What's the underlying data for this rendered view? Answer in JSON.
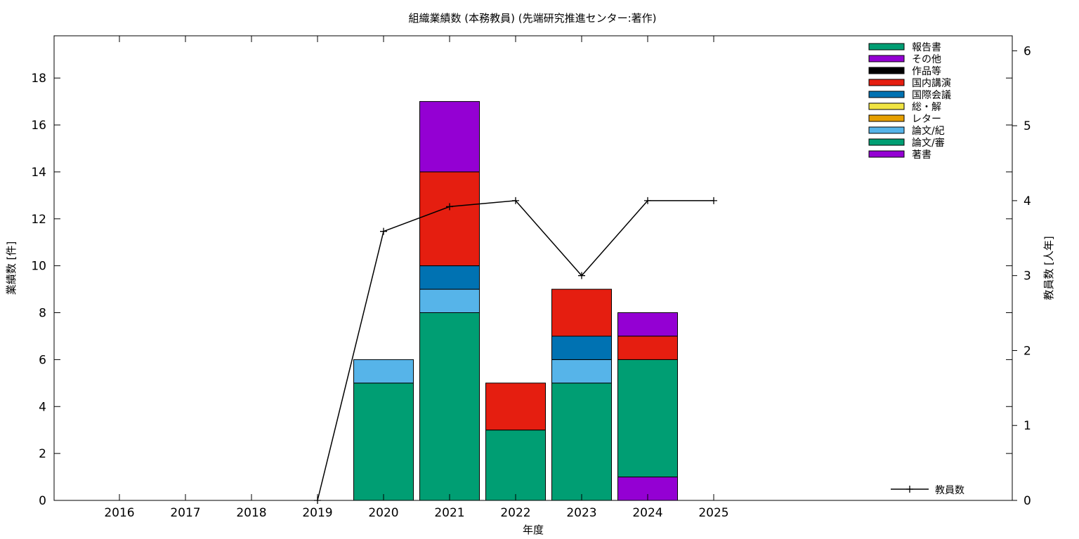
{
  "chart_data": {
    "type": "bar",
    "title": "組織業績数 (本務教員) (先端研究推進センター:著作)",
    "xlabel": "年度",
    "ylabel": "業績数 [件]",
    "y2label": "教員数 [人年]",
    "categories": [
      "2016",
      "2017",
      "2018",
      "2019",
      "2020",
      "2021",
      "2022",
      "2023",
      "2024",
      "2025"
    ],
    "ylim": [
      0,
      19.8
    ],
    "y2lim": [
      0,
      6.2
    ],
    "yticks": [
      "0",
      "2",
      "4",
      "6",
      "8",
      "10",
      "12",
      "14",
      "16",
      "18"
    ],
    "y2ticks": [
      "0",
      "1",
      "2",
      "3",
      "4",
      "5",
      "6"
    ],
    "grid": false,
    "stacked": true,
    "legend_position": "top-right",
    "series": [
      {
        "name": "著書",
        "color": "#9400d3",
        "values": [
          0,
          0,
          0,
          0,
          0,
          0,
          0,
          0,
          1,
          0
        ]
      },
      {
        "name": "論文/審",
        "color": "#009e73",
        "values": [
          0,
          0,
          0,
          0,
          5,
          8,
          3,
          5,
          5,
          0
        ]
      },
      {
        "name": "論文/紀",
        "color": "#56b4e9",
        "values": [
          0,
          0,
          0,
          0,
          1,
          1,
          0,
          1,
          0,
          0
        ]
      },
      {
        "name": "レター",
        "color": "#e69f00",
        "values": [
          0,
          0,
          0,
          0,
          0,
          0,
          0,
          0,
          0,
          0
        ]
      },
      {
        "name": "総・解",
        "color": "#f0e442",
        "values": [
          0,
          0,
          0,
          0,
          0,
          0,
          0,
          0,
          0,
          0
        ]
      },
      {
        "name": "国際会議",
        "color": "#0072b2",
        "values": [
          0,
          0,
          0,
          0,
          0,
          1,
          0,
          1,
          0,
          0
        ]
      },
      {
        "name": "国内講演",
        "color": "#e51e10",
        "values": [
          0,
          0,
          0,
          0,
          0,
          4,
          2,
          2,
          1,
          0
        ]
      },
      {
        "name": "作品等",
        "color": "#000000",
        "values": [
          0,
          0,
          0,
          0,
          0,
          0,
          0,
          0,
          0,
          0
        ]
      },
      {
        "name": "その他",
        "color": "#9400d3",
        "values": [
          0,
          0,
          0,
          0,
          0,
          3,
          0,
          0,
          1,
          0
        ]
      },
      {
        "name": "報告書",
        "color": "#009e73",
        "values": [
          0,
          0,
          0,
          0,
          0,
          0,
          0,
          0,
          0,
          0
        ]
      }
    ],
    "line_series": {
      "name": "教員数",
      "axis": "y2",
      "color": "#000000",
      "x": [
        "2019",
        "2020",
        "2021",
        "2022",
        "2023",
        "2024",
        "2025"
      ],
      "values": [
        0,
        3.59,
        3.92,
        4.0,
        3.0,
        4.0,
        4.0
      ]
    }
  }
}
